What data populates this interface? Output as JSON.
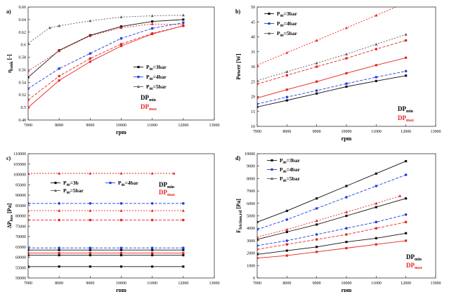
{
  "colors": {
    "dp_min": "#000000",
    "dp_max": "#e8231f",
    "p3_min": "#111111",
    "p3_max": "#e8231f",
    "p4_min": "#1f3fe0",
    "p4_max": "#e8231f",
    "p5_min": "#5a5a5a",
    "p5_max": "#e8231f"
  },
  "chart_data": [
    {
      "panel": "a)",
      "type": "line",
      "xlabel": "rpm",
      "ylabel": "η_tank [-]",
      "xlim": [
        7000,
        13000
      ],
      "ylim": [
        0.48,
        0.66
      ],
      "xticks": [
        7000,
        8000,
        9000,
        10000,
        11000,
        12000,
        13000
      ],
      "yticks": [
        0.48,
        0.5,
        0.52,
        0.54,
        0.56,
        0.58,
        0.6,
        0.62,
        0.64,
        0.66
      ],
      "ytick_labels": [
        "0.48",
        "0.5",
        "0.52",
        "0.54",
        "0.56",
        "0.58",
        "0.6",
        "0.62",
        "0.64",
        "0.66"
      ],
      "grid": false,
      "legend": [
        {
          "label": "P00=3bar",
          "marker": "square",
          "series_color": "p3_min"
        },
        {
          "label": "P00=4bar",
          "marker": "circle",
          "series_color": "p4_min"
        },
        {
          "label": "P00=5bar",
          "marker": "triangle",
          "series_color": "p5_min"
        }
      ],
      "dp_labels": [
        "DPmin",
        "DPmax"
      ],
      "series": [
        {
          "color_key": "p3_min",
          "dash": "0",
          "marker": "square",
          "x": [
            7000,
            8000,
            9000,
            10000,
            11000,
            12000
          ],
          "y": [
            0.548,
            0.591,
            0.615,
            0.629,
            0.637,
            0.64
          ]
        },
        {
          "color_key": "p3_max",
          "dash": "0",
          "marker": "square",
          "x": [
            7000,
            8000,
            9000,
            10000,
            11000,
            12000
          ],
          "y": [
            0.5,
            0.543,
            0.573,
            0.598,
            0.617,
            0.63
          ]
        },
        {
          "color_key": "p4_min",
          "dash": "4,2",
          "marker": "circle",
          "x": [
            7000,
            8000,
            9000,
            10000,
            11000,
            12000
          ],
          "y": [
            0.53,
            0.562,
            0.586,
            0.61,
            0.626,
            0.635
          ]
        },
        {
          "color_key": "p4_max",
          "dash": "4,2",
          "marker": "circle",
          "x": [
            7000,
            8000,
            9000,
            10000,
            11000,
            12000
          ],
          "y": [
            0.512,
            0.55,
            0.578,
            0.601,
            0.618,
            0.63
          ]
        },
        {
          "color_key": "p5_min",
          "dash": "2,2",
          "marker": "triangle",
          "x": [
            7000,
            7700,
            8000,
            9000,
            10000,
            11000,
            12000
          ],
          "y": [
            0.602,
            0.627,
            0.63,
            0.638,
            0.644,
            0.646,
            0.647
          ]
        },
        {
          "color_key": "p5_max",
          "dash": "2,2",
          "marker": "triangle",
          "x": [
            7000,
            8000,
            9000,
            10000,
            11000,
            12000
          ],
          "y": [
            0.558,
            0.59,
            0.614,
            0.627,
            0.633,
            0.632
          ]
        }
      ]
    },
    {
      "panel": "b)",
      "type": "line",
      "xlabel": "rpm",
      "ylabel": "Power [W]",
      "xlim": [
        7000,
        13000
      ],
      "ylim": [
        10,
        50
      ],
      "xticks": [
        7000,
        8000,
        9000,
        10000,
        11000,
        12000,
        13000
      ],
      "yticks": [
        10,
        15,
        20,
        25,
        30,
        35,
        40,
        45,
        50
      ],
      "ytick_labels": [
        "10",
        "15",
        "20",
        "25",
        "30",
        "35",
        "40",
        "45",
        "50"
      ],
      "grid": false,
      "legend": [
        {
          "label": "P00=3bar",
          "marker": "square",
          "series_color": "p3_min"
        },
        {
          "label": "P00=4bar",
          "marker": "circle",
          "series_color": "p4_min"
        },
        {
          "label": "P00=5bar",
          "marker": "triangle",
          "series_color": "p5_min"
        }
      ],
      "dp_labels": [
        "DPmin",
        "DPmax"
      ],
      "series": [
        {
          "color_key": "p3_min",
          "dash": "0",
          "marker": "square",
          "x": [
            7000,
            8000,
            9000,
            10000,
            11000,
            12000
          ],
          "y": [
            16.5,
            18.7,
            21.0,
            23.3,
            25.2,
            27.0
          ]
        },
        {
          "color_key": "p3_max",
          "dash": "0",
          "marker": "square",
          "x": [
            7000,
            8000,
            9000,
            10000,
            11000,
            12000
          ],
          "y": [
            19.5,
            22.3,
            25.0,
            27.8,
            30.5,
            33.0
          ]
        },
        {
          "color_key": "p4_min",
          "dash": "4,2",
          "marker": "circle",
          "x": [
            7000,
            8000,
            9000,
            10000,
            11000,
            12000
          ],
          "y": [
            17.5,
            19.8,
            22.0,
            24.3,
            26.5,
            28.5
          ]
        },
        {
          "color_key": "p4_max",
          "dash": "4,2",
          "marker": "circle",
          "x": [
            7000,
            8000,
            9000,
            10000,
            11000,
            12000
          ],
          "y": [
            24.2,
            27.1,
            30.0,
            32.8,
            35.9,
            38.8
          ]
        },
        {
          "color_key": "p5_min",
          "dash": "2,2",
          "marker": "triangle",
          "x": [
            7000,
            8000,
            9000,
            10000,
            11000,
            12000
          ],
          "y": [
            25.3,
            28.3,
            31.2,
            34.2,
            37.5,
            40.8
          ]
        },
        {
          "color_key": "p5_max",
          "dash": "2,2",
          "marker": "triangle",
          "x": [
            7000,
            8000,
            9000,
            10000,
            11000,
            12000
          ],
          "y": [
            30.5,
            34.7,
            38.8,
            43.0,
            47.2,
            51.4
          ]
        }
      ]
    },
    {
      "panel": "c)",
      "type": "line",
      "xlabel": "rpm",
      "ylabel": "ΔP_loss [Pa]",
      "xlim": [
        7000,
        13000
      ],
      "ylim": [
        50000,
        110000
      ],
      "xticks": [
        7000,
        8000,
        9000,
        10000,
        11000,
        12000,
        13000
      ],
      "yticks": [
        50000,
        55000,
        60000,
        65000,
        70000,
        75000,
        80000,
        85000,
        90000,
        95000,
        100000,
        105000,
        110000
      ],
      "ytick_labels": [
        "50000",
        "55000",
        "60000",
        "65000",
        "70000",
        "75000",
        "80000",
        "85000",
        "90000",
        "95000",
        "100000",
        "105000",
        "110000"
      ],
      "grid": false,
      "legend": [
        {
          "label": "P00=3b",
          "marker": "square",
          "series_color": "p3_min"
        },
        {
          "label": "P00=4bar",
          "marker": "circle",
          "series_color": "p4_min"
        },
        {
          "label": "P00=5bar",
          "marker": "triangle",
          "series_color": "p5_min"
        }
      ],
      "dp_labels": [
        "DPmin",
        "DPmax"
      ],
      "series": [
        {
          "color_key": "p3_min",
          "dash": "0",
          "marker": "square",
          "x": [
            7000,
            8000,
            9000,
            10000,
            11000,
            12000
          ],
          "y": [
            55500,
            55500,
            55500,
            55500,
            55500,
            55500
          ]
        },
        {
          "color_key": "p3_min",
          "dash": "0",
          "marker": "square",
          "x": [
            7000,
            8000,
            9000,
            10000,
            11000,
            12000
          ],
          "y": [
            61000,
            61000,
            61000,
            61000,
            61000,
            61000
          ]
        },
        {
          "color_key": "p3_max",
          "dash": "0",
          "marker": "square",
          "x": [
            7000,
            8000,
            9000,
            10000,
            11000,
            12000
          ],
          "y": [
            62000,
            62000,
            62000,
            62000,
            62000,
            62000
          ]
        },
        {
          "color_key": "p3_min",
          "dash": "0",
          "marker": "square",
          "x": [
            7000,
            8000,
            9000,
            10000,
            11000,
            12000
          ],
          "y": [
            63500,
            63500,
            63500,
            63500,
            63500,
            63500
          ]
        },
        {
          "color_key": "p4_min",
          "dash": "4,2",
          "marker": "circle",
          "x": [
            7000,
            8000,
            9000,
            10000,
            11000,
            12000
          ],
          "y": [
            64500,
            64500,
            64500,
            64500,
            64500,
            64500
          ]
        },
        {
          "color_key": "p4_max",
          "dash": "4,2",
          "marker": "circle",
          "x": [
            7000,
            8000,
            9000,
            10000,
            11000,
            12000
          ],
          "y": [
            78000,
            78000,
            78000,
            78000,
            78000,
            78000
          ]
        },
        {
          "color_key": "p5_max",
          "dash": "2,2",
          "marker": "triangle",
          "x": [
            7000,
            8000,
            9000,
            10000,
            11000,
            12000
          ],
          "y": [
            82500,
            82500,
            82500,
            82500,
            82500,
            82500
          ]
        },
        {
          "color_key": "p4_min",
          "dash": "4,2",
          "marker": "circle",
          "x": [
            7000,
            8000,
            9000,
            10000,
            11000,
            12000
          ],
          "y": [
            86000,
            86000,
            86000,
            86000,
            86000,
            86000
          ]
        },
        {
          "color_key": "p5_max",
          "dash": "2,2",
          "marker": "triangle",
          "x": [
            7000,
            8000,
            9000,
            10000,
            11000,
            11700
          ],
          "y": [
            100500,
            100500,
            100500,
            100500,
            100500,
            100500
          ]
        }
      ]
    },
    {
      "panel": "d)",
      "type": "line",
      "xlabel": "rpm",
      "ylabel": "F_friction,rel [Pa]",
      "xlim": [
        7000,
        13000
      ],
      "ylim": [
        0,
        10000
      ],
      "xticks": [
        7000,
        8000,
        9000,
        10000,
        11000,
        12000,
        13000
      ],
      "yticks": [
        0,
        1000,
        2000,
        3000,
        4000,
        5000,
        6000,
        7000,
        8000,
        9000,
        10000
      ],
      "ytick_labels": [
        "0",
        "1000",
        "2000",
        "3000",
        "4000",
        "5000",
        "6000",
        "7000",
        "8000",
        "9000",
        "10000"
      ],
      "grid": false,
      "legend": [
        {
          "label": "P00=3bar",
          "marker": "square",
          "series_color": "p3_min"
        },
        {
          "label": "P00=4bar",
          "marker": "circle",
          "series_color": "p4_min"
        },
        {
          "label": "P00=5bar",
          "marker": "triangle",
          "series_color": "p5_min"
        }
      ],
      "dp_labels": [
        "DPmin",
        "DPmax"
      ],
      "series": [
        {
          "color_key": "p3_min",
          "dash": "0",
          "marker": "square",
          "x": [
            7000,
            8000,
            9000,
            10000,
            11000,
            12000
          ],
          "y": [
            4500,
            5400,
            6400,
            7400,
            8400,
            9400
          ]
        },
        {
          "color_key": "p4_min",
          "dash": "4,2",
          "marker": "circle",
          "x": [
            7000,
            8000,
            9000,
            10000,
            11000,
            12000
          ],
          "y": [
            3900,
            4700,
            5600,
            6500,
            7400,
            8300
          ]
        },
        {
          "color_key": "p5_max",
          "dash": "2,2",
          "marker": "triangle",
          "x": [
            7000,
            8000,
            9000,
            10000,
            11000,
            11800
          ],
          "y": [
            3300,
            3900,
            4600,
            5300,
            6000,
            6600
          ]
        },
        {
          "color_key": "p3_min",
          "dash": "0",
          "marker": "square",
          "x": [
            7000,
            8000,
            9000,
            10000,
            11000,
            12000
          ],
          "y": [
            3100,
            3700,
            4300,
            5000,
            5700,
            6400
          ]
        },
        {
          "color_key": "p4_min",
          "dash": "4,2",
          "marker": "circle",
          "x": [
            7000,
            8000,
            9000,
            10000,
            11000,
            12000
          ],
          "y": [
            2600,
            3000,
            3500,
            4000,
            4500,
            5100
          ]
        },
        {
          "color_key": "p4_max",
          "dash": "4,2",
          "marker": "circle",
          "x": [
            7000,
            8000,
            9000,
            10000,
            11000,
            12000
          ],
          "y": [
            2300,
            2700,
            3100,
            3500,
            4000,
            4500
          ]
        },
        {
          "color_key": "p3_min",
          "dash": "0",
          "marker": "square",
          "x": [
            7000,
            8000,
            9000,
            10000,
            11000,
            12000
          ],
          "y": [
            1900,
            2200,
            2500,
            2900,
            3200,
            3600
          ]
        },
        {
          "color_key": "p3_max",
          "dash": "0",
          "marker": "square",
          "x": [
            7000,
            8000,
            9000,
            10000,
            11000,
            12000
          ],
          "y": [
            1600,
            1800,
            2100,
            2400,
            2700,
            3000
          ]
        }
      ]
    }
  ]
}
